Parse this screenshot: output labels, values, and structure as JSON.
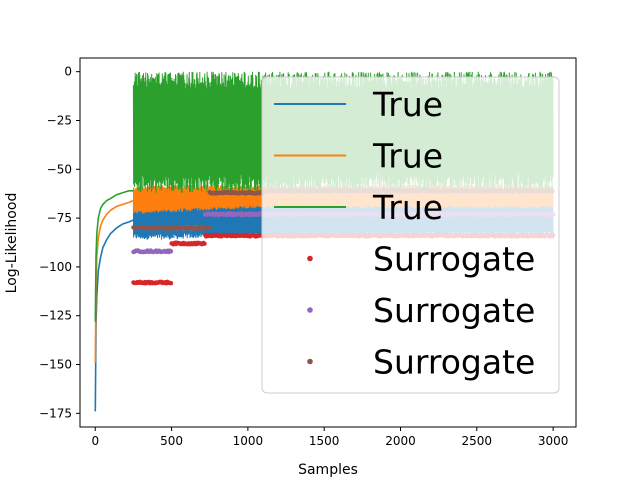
{
  "chart_data": {
    "type": "line",
    "xlabel": "Samples",
    "ylabel": "Log-Likelihood",
    "xlim": [
      -100,
      3150
    ],
    "ylim": [
      -182,
      7
    ],
    "xticks": [
      0,
      500,
      1000,
      1500,
      2000,
      2500,
      3000
    ],
    "yticks": [
      0,
      -25,
      -50,
      -75,
      -100,
      -125,
      -150,
      -175
    ],
    "xtick_labels": [
      "0",
      "500",
      "1000",
      "1500",
      "2000",
      "2500",
      "3000"
    ],
    "ytick_labels": [
      "0",
      "−25",
      "−50",
      "−75",
      "−100",
      "−125",
      "−150",
      "−175"
    ],
    "grid": false,
    "legend": {
      "placement": "upper right",
      "alpha": 0.8
    },
    "series": [
      {
        "name": "True",
        "kind": "line",
        "color": "#1f77b4",
        "warmup_x": [
          0,
          5,
          10,
          20,
          35,
          50,
          75,
          100,
          140,
          180,
          220,
          250
        ],
        "warmup_y": [
          -174,
          -130,
          -115,
          -102,
          -95,
          -90,
          -86,
          -83,
          -80,
          -78,
          -77,
          -76
        ],
        "band_x": [
          250,
          500,
          750,
          1000,
          1500,
          2000,
          2500,
          3000
        ],
        "band_low": [
          -86,
          -86,
          -85,
          -85,
          -85,
          -84,
          -84,
          -84
        ],
        "band_high": [
          -64,
          -66,
          -66,
          -67,
          -67,
          -67,
          -67,
          -67
        ]
      },
      {
        "name": "True",
        "kind": "line",
        "color": "#ff7f0e",
        "warmup_x": [
          0,
          5,
          10,
          20,
          35,
          50,
          75,
          100,
          140,
          180,
          220,
          250
        ],
        "warmup_y": [
          -149,
          -110,
          -95,
          -85,
          -79,
          -76,
          -73,
          -71,
          -69,
          -68,
          -67,
          -66
        ],
        "band_x": [
          250,
          500,
          750,
          1000,
          1500,
          2000,
          2500,
          3000
        ],
        "band_low": [
          -73,
          -72,
          -71,
          -70,
          -70,
          -70,
          -70,
          -70
        ],
        "band_high": [
          -59,
          -58,
          -58,
          -58,
          -58,
          -58,
          -58,
          -58
        ]
      },
      {
        "name": "True",
        "kind": "line",
        "color": "#2ca02c",
        "warmup_x": [
          0,
          5,
          10,
          20,
          35,
          50,
          75,
          100,
          140,
          180,
          220,
          250
        ],
        "warmup_y": [
          -128,
          -95,
          -83,
          -75,
          -70,
          -68,
          -66,
          -65,
          -63,
          -62,
          -61,
          -61
        ],
        "band_x": [
          250,
          500,
          750,
          1000,
          1500,
          2000,
          2500,
          3000
        ],
        "band_low": [
          -62,
          -62,
          -62,
          -62,
          -62,
          -61,
          -61,
          -61
        ],
        "band_high": [
          0,
          0,
          0,
          0,
          0,
          0,
          0,
          0
        ]
      },
      {
        "name": "Surrogate",
        "kind": "points",
        "color": "#d62728",
        "segments": [
          {
            "x": [
              250,
              500
            ],
            "y": -108
          },
          {
            "x": [
              500,
              720
            ],
            "y": -88
          },
          {
            "x": [
              720,
              3000
            ],
            "y": -84
          }
        ]
      },
      {
        "name": "Surrogate",
        "kind": "points",
        "color": "#9467bd",
        "segments": [
          {
            "x": [
              250,
              500
            ],
            "y": -92
          },
          {
            "x": [
              500,
              720
            ],
            "y": -80
          },
          {
            "x": [
              720,
              3000
            ],
            "y": -73
          }
        ]
      },
      {
        "name": "Surrogate",
        "kind": "points",
        "color": "#8c564b",
        "segments": [
          {
            "x": [
              250,
              750
            ],
            "y": -80
          },
          {
            "x": [
              750,
              1100
            ],
            "y": -62
          },
          {
            "x": [
              1100,
              3000
            ],
            "y": -61
          }
        ]
      }
    ]
  }
}
